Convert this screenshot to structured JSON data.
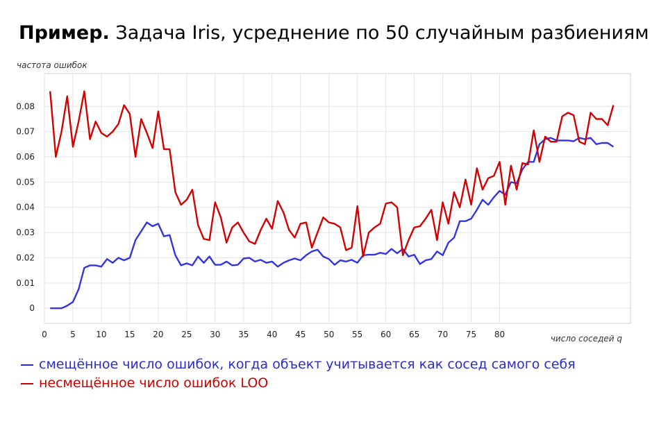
{
  "slide": {
    "title_bold": "Пример.",
    "title_rest": " Задача Iris, усреднение по 50 случайным разбиениям"
  },
  "legend": [
    {
      "text": "смещённое число ошибок, когда объект учитывается как сосед самого себя",
      "color": "#2b2bd6"
    },
    {
      "text": "несмещённое число ошибок LOO",
      "color": "#cc0000"
    }
  ],
  "chart_data": {
    "type": "line",
    "ylabel": "частота ошибок",
    "xlabel": "число соседей q",
    "xlim": [
      0,
      103
    ],
    "ylim": [
      -0.006,
      0.093
    ],
    "x_ticks": [
      0,
      5,
      10,
      15,
      20,
      25,
      30,
      35,
      40,
      45,
      50,
      55,
      60,
      65,
      70,
      75,
      80
    ],
    "y_ticks": [
      0,
      0.01,
      0.02,
      0.03,
      0.04,
      0.05,
      0.06,
      0.07,
      0.08
    ],
    "y_tick_labels": [
      "0",
      "0.01",
      "0.02",
      "0.03",
      "0.04",
      "0.05",
      "0.06",
      "0.07",
      "0.08"
    ],
    "grid": true,
    "series": [
      {
        "name": "смещённое число ошибок, когда объект учитывается как сосед самого себя",
        "color": "#3333e6",
        "values": [
          [
            1,
            0.0
          ],
          [
            2,
            0.0
          ],
          [
            3,
            0.0
          ],
          [
            4,
            0.001
          ],
          [
            5,
            0.0025
          ],
          [
            6,
            0.0075
          ],
          [
            7,
            0.016
          ],
          [
            8,
            0.017
          ],
          [
            9,
            0.017
          ],
          [
            10,
            0.0165
          ],
          [
            11,
            0.0195
          ],
          [
            12,
            0.018
          ],
          [
            13,
            0.02
          ],
          [
            14,
            0.019
          ],
          [
            15,
            0.02
          ],
          [
            16,
            0.027
          ],
          [
            17,
            0.0305
          ],
          [
            18,
            0.034
          ],
          [
            19,
            0.0325
          ],
          [
            20,
            0.0335
          ],
          [
            21,
            0.0285
          ],
          [
            22,
            0.029
          ],
          [
            23,
            0.021
          ],
          [
            24,
            0.017
          ],
          [
            25,
            0.0178
          ],
          [
            26,
            0.017
          ],
          [
            27,
            0.0205
          ],
          [
            28,
            0.018
          ],
          [
            29,
            0.0205
          ],
          [
            30,
            0.0172
          ],
          [
            31,
            0.0172
          ],
          [
            32,
            0.0185
          ],
          [
            33,
            0.017
          ],
          [
            34,
            0.0172
          ],
          [
            35,
            0.0197
          ],
          [
            36,
            0.02
          ],
          [
            37,
            0.0185
          ],
          [
            38,
            0.0192
          ],
          [
            39,
            0.018
          ],
          [
            40,
            0.0185
          ],
          [
            41,
            0.0165
          ],
          [
            42,
            0.018
          ],
          [
            43,
            0.019
          ],
          [
            44,
            0.0197
          ],
          [
            45,
            0.019
          ],
          [
            46,
            0.021
          ],
          [
            47,
            0.0225
          ],
          [
            48,
            0.0232
          ],
          [
            49,
            0.0205
          ],
          [
            50,
            0.0195
          ],
          [
            51,
            0.0172
          ],
          [
            52,
            0.019
          ],
          [
            53,
            0.0185
          ],
          [
            54,
            0.0192
          ],
          [
            55,
            0.018
          ],
          [
            56,
            0.021
          ],
          [
            57,
            0.0212
          ],
          [
            58,
            0.0212
          ],
          [
            59,
            0.022
          ],
          [
            60,
            0.0215
          ],
          [
            61,
            0.0235
          ],
          [
            62,
            0.0218
          ],
          [
            63,
            0.0235
          ],
          [
            64,
            0.0205
          ],
          [
            65,
            0.0212
          ],
          [
            66,
            0.0175
          ],
          [
            67,
            0.019
          ],
          [
            68,
            0.0195
          ],
          [
            69,
            0.0225
          ],
          [
            70,
            0.021
          ],
          [
            71,
            0.026
          ],
          [
            72,
            0.028
          ],
          [
            73,
            0.0345
          ],
          [
            74,
            0.0345
          ],
          [
            75,
            0.0355
          ],
          [
            76,
            0.039
          ],
          [
            77,
            0.043
          ],
          [
            78,
            0.041
          ],
          [
            79,
            0.044
          ],
          [
            80,
            0.0465
          ],
          [
            81,
            0.045
          ],
          [
            82,
            0.05
          ],
          [
            83,
            0.0495
          ],
          [
            84,
            0.055
          ],
          [
            85,
            0.058
          ],
          [
            86,
            0.058
          ],
          [
            87,
            0.065
          ],
          [
            88,
            0.067
          ],
          [
            89,
            0.0675
          ],
          [
            90,
            0.0665
          ],
          [
            91,
            0.0665
          ],
          [
            92,
            0.0665
          ],
          [
            93,
            0.0662
          ],
          [
            94,
            0.0675
          ],
          [
            95,
            0.067
          ],
          [
            96,
            0.0675
          ],
          [
            97,
            0.065
          ],
          [
            98,
            0.0655
          ],
          [
            99,
            0.0655
          ],
          [
            100,
            0.064
          ]
        ]
      },
      {
        "name": "несмещённое число ошибок LOO",
        "color": "#d40000",
        "values": [
          [
            1,
            0.086
          ],
          [
            2,
            0.06
          ],
          [
            3,
            0.07
          ],
          [
            4,
            0.084
          ],
          [
            5,
            0.064
          ],
          [
            6,
            0.074
          ],
          [
            7,
            0.086
          ],
          [
            8,
            0.067
          ],
          [
            9,
            0.074
          ],
          [
            10,
            0.0695
          ],
          [
            11,
            0.068
          ],
          [
            12,
            0.07
          ],
          [
            13,
            0.073
          ],
          [
            14,
            0.0805
          ],
          [
            15,
            0.077
          ],
          [
            16,
            0.06
          ],
          [
            17,
            0.075
          ],
          [
            18,
            0.0695
          ],
          [
            19,
            0.0635
          ],
          [
            20,
            0.078
          ],
          [
            21,
            0.063
          ],
          [
            22,
            0.063
          ],
          [
            23,
            0.046
          ],
          [
            24,
            0.041
          ],
          [
            25,
            0.043
          ],
          [
            26,
            0.047
          ],
          [
            27,
            0.033
          ],
          [
            28,
            0.0275
          ],
          [
            29,
            0.027
          ],
          [
            30,
            0.042
          ],
          [
            31,
            0.036
          ],
          [
            32,
            0.026
          ],
          [
            33,
            0.032
          ],
          [
            34,
            0.034
          ],
          [
            35,
            0.03
          ],
          [
            36,
            0.0265
          ],
          [
            37,
            0.0255
          ],
          [
            38,
            0.031
          ],
          [
            39,
            0.0355
          ],
          [
            40,
            0.0315
          ],
          [
            41,
            0.0425
          ],
          [
            42,
            0.038
          ],
          [
            43,
            0.031
          ],
          [
            44,
            0.028
          ],
          [
            45,
            0.0335
          ],
          [
            46,
            0.034
          ],
          [
            47,
            0.024
          ],
          [
            48,
            0.03
          ],
          [
            49,
            0.036
          ],
          [
            50,
            0.034
          ],
          [
            51,
            0.0335
          ],
          [
            52,
            0.032
          ],
          [
            53,
            0.023
          ],
          [
            54,
            0.024
          ],
          [
            55,
            0.0405
          ],
          [
            56,
            0.0205
          ],
          [
            57,
            0.03
          ],
          [
            58,
            0.032
          ],
          [
            59,
            0.0335
          ],
          [
            60,
            0.0415
          ],
          [
            61,
            0.042
          ],
          [
            62,
            0.04
          ],
          [
            63,
            0.021
          ],
          [
            64,
            0.027
          ],
          [
            65,
            0.032
          ],
          [
            66,
            0.0325
          ],
          [
            67,
            0.0355
          ],
          [
            68,
            0.039
          ],
          [
            69,
            0.027
          ],
          [
            70,
            0.042
          ],
          [
            71,
            0.0335
          ],
          [
            72,
            0.046
          ],
          [
            73,
            0.04
          ],
          [
            74,
            0.051
          ],
          [
            75,
            0.041
          ],
          [
            76,
            0.0555
          ],
          [
            77,
            0.047
          ],
          [
            78,
            0.0515
          ],
          [
            79,
            0.0525
          ],
          [
            80,
            0.058
          ],
          [
            81,
            0.041
          ],
          [
            82,
            0.0565
          ],
          [
            83,
            0.047
          ],
          [
            84,
            0.0575
          ],
          [
            85,
            0.057
          ],
          [
            86,
            0.0705
          ],
          [
            87,
            0.058
          ],
          [
            88,
            0.068
          ],
          [
            89,
            0.066
          ],
          [
            90,
            0.066
          ],
          [
            91,
            0.076
          ],
          [
            92,
            0.0775
          ],
          [
            93,
            0.0765
          ],
          [
            94,
            0.066
          ],
          [
            95,
            0.065
          ],
          [
            96,
            0.0775
          ],
          [
            97,
            0.075
          ],
          [
            98,
            0.075
          ],
          [
            99,
            0.0725
          ],
          [
            100,
            0.0805
          ]
        ]
      }
    ]
  }
}
